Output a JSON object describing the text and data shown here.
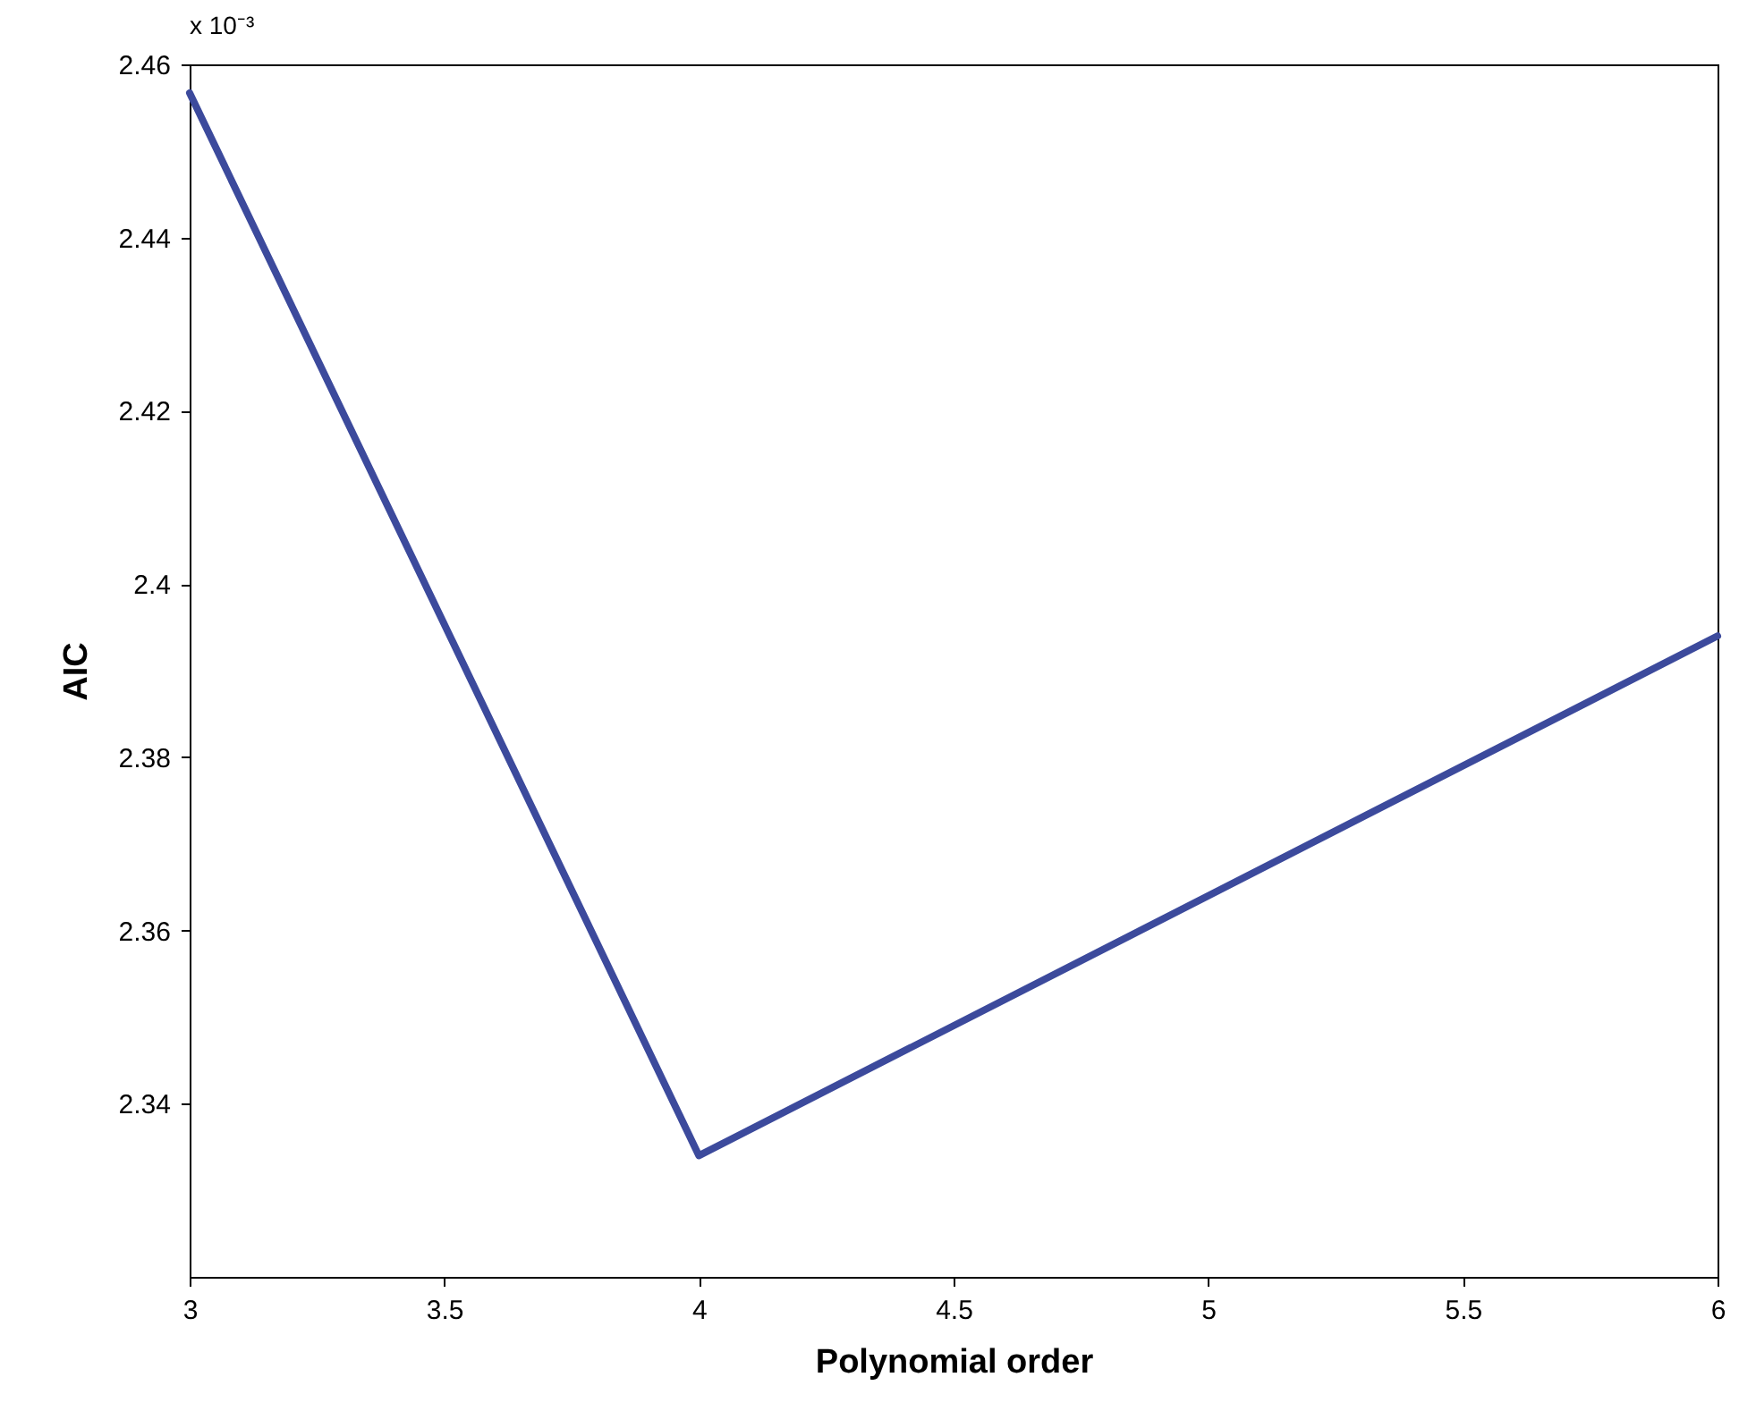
{
  "chart_data": {
    "type": "line",
    "xlabel": "Polynomial order",
    "ylabel": "AIC",
    "x": [
      3,
      4,
      6
    ],
    "series": [
      {
        "color": "#3c4a9c",
        "values": [
          2.4567,
          2.334,
          2.394
        ]
      }
    ],
    "xlim": [
      3,
      6
    ],
    "xticks": [
      3,
      3.5,
      4,
      4.5,
      5,
      5.5,
      6
    ],
    "ylim": [
      2.32,
      2.46
    ],
    "yticks": [
      2.34,
      2.36,
      2.38,
      2.4,
      2.42,
      2.44,
      2.46
    ],
    "annotations": [
      "x 10⁻³"
    ],
    "grid": false,
    "marker": "none",
    "line_style": "solid"
  }
}
